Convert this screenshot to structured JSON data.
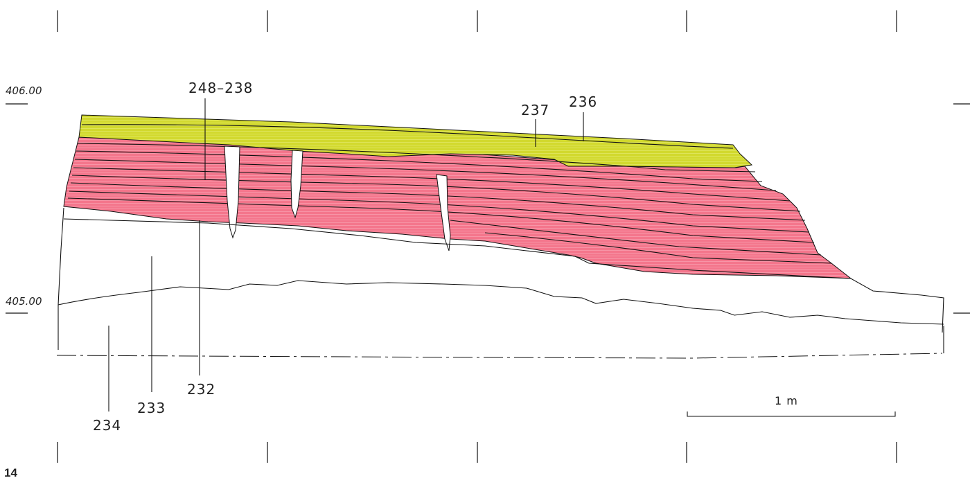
{
  "elevations": {
    "upper": "406.00",
    "lower": "405.00"
  },
  "layers": {
    "l248_238": "248–238",
    "l237": "237",
    "l236": "236",
    "l232": "232",
    "l233": "233",
    "l234": "234"
  },
  "scale_bar": {
    "label": "1 m"
  },
  "figure_number": "14",
  "colors": {
    "topsoil": "#d2d92e",
    "stratified_fill": "#f4768c"
  }
}
